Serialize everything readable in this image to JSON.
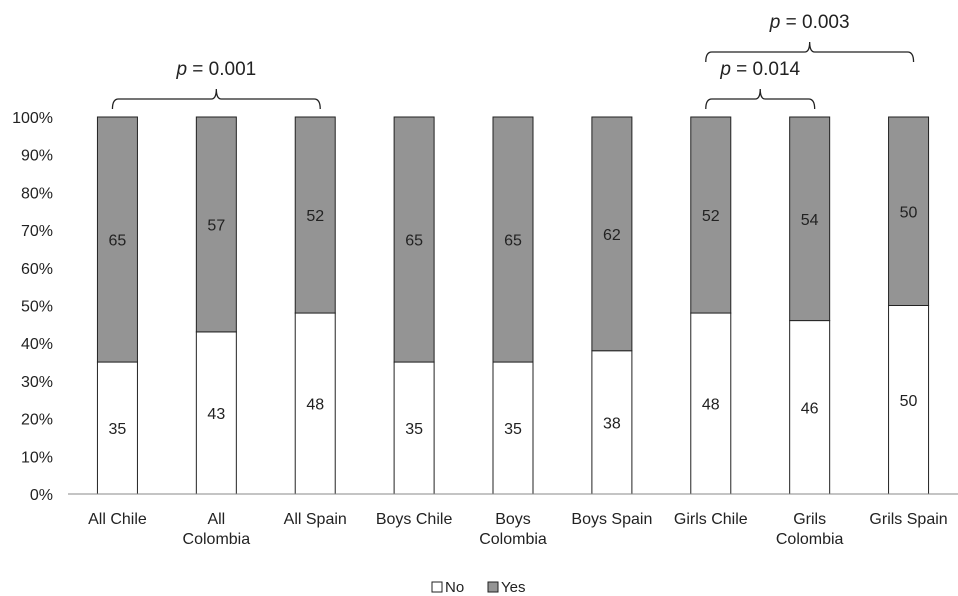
{
  "chart_data": {
    "type": "bar",
    "stacked": true,
    "percent": true,
    "categories": [
      [
        "All Chile"
      ],
      [
        "All",
        "Colombia"
      ],
      [
        "All Spain"
      ],
      [
        "Boys Chile"
      ],
      [
        "Boys",
        "Colombia"
      ],
      [
        "Boys Spain"
      ],
      [
        "Girls Chile"
      ],
      [
        "Grils",
        "Colombia"
      ],
      [
        "Grils Spain"
      ]
    ],
    "series": [
      {
        "name": "No",
        "values": [
          35,
          43,
          48,
          35,
          35,
          38,
          48,
          46,
          50
        ],
        "color": "#ffffff"
      },
      {
        "name": "Yes",
        "values": [
          65,
          57,
          52,
          65,
          65,
          62,
          52,
          54,
          50
        ],
        "color": "#949494"
      }
    ],
    "yticks": [
      "0%",
      "10%",
      "20%",
      "30%",
      "40%",
      "50%",
      "60%",
      "70%",
      "80%",
      "90%",
      "100%"
    ],
    "ylim": [
      0,
      100
    ],
    "legend_position": "bottom",
    "grid": false,
    "annotations": [
      {
        "from": 0,
        "to": 2,
        "level": 1,
        "p_label": "p",
        "p_value": " = 0.001"
      },
      {
        "from": 6,
        "to": 7,
        "level": 1,
        "p_label": "p",
        "p_value": " = 0.014"
      },
      {
        "from": 6,
        "to": 8,
        "level": 2,
        "p_label": "p",
        "p_value": " = 0.003"
      }
    ]
  }
}
